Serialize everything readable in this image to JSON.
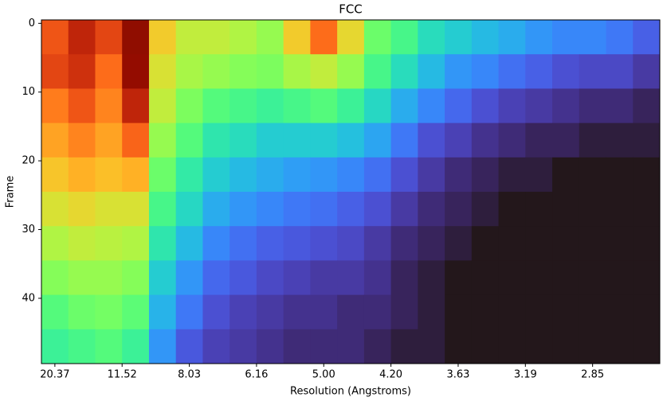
{
  "chart_data": {
    "type": "heatmap",
    "title": "FCC",
    "xlabel": "Resolution (Angstroms)",
    "ylabel": "Frame",
    "colormap": "turbo",
    "y_inverted": true,
    "xlim": [
      0,
      92
    ],
    "ylim": [
      -0.5,
      49.5
    ],
    "xticks": [
      {
        "value": 2,
        "label": "20.37"
      },
      {
        "value": 12,
        "label": "11.52"
      },
      {
        "value": 22,
        "label": "8.03"
      },
      {
        "value": 32,
        "label": "6.16"
      },
      {
        "value": 42,
        "label": "5.00"
      },
      {
        "value": 52,
        "label": "4.20"
      },
      {
        "value": 62,
        "label": "3.63"
      },
      {
        "value": 72,
        "label": "3.19"
      },
      {
        "value": 82,
        "label": "2.85"
      }
    ],
    "yticks": [
      0,
      10,
      20,
      30,
      40
    ],
    "z": [
      [
        0.78,
        0.85,
        0.8,
        0.95,
        0.62,
        0.55,
        0.55,
        0.53,
        0.5,
        0.62,
        0.75,
        0.6,
        0.45,
        0.4,
        0.33,
        0.3,
        0.27,
        0.25,
        0.22,
        0.2,
        0.2,
        0.18,
        0.15
      ],
      [
        0.8,
        0.83,
        0.75,
        0.92,
        0.58,
        0.52,
        0.5,
        0.48,
        0.47,
        0.52,
        0.55,
        0.5,
        0.4,
        0.33,
        0.27,
        0.22,
        0.2,
        0.17,
        0.15,
        0.13,
        0.12,
        0.12,
        0.1
      ],
      [
        0.73,
        0.78,
        0.72,
        0.85,
        0.55,
        0.47,
        0.42,
        0.4,
        0.38,
        0.4,
        0.42,
        0.38,
        0.32,
        0.25,
        0.2,
        0.16,
        0.13,
        0.11,
        0.1,
        0.09,
        0.08,
        0.08,
        0.07
      ],
      [
        0.68,
        0.72,
        0.68,
        0.76,
        0.5,
        0.42,
        0.35,
        0.33,
        0.3,
        0.3,
        0.3,
        0.28,
        0.24,
        0.18,
        0.13,
        0.11,
        0.09,
        0.08,
        0.07,
        0.07,
        0.06,
        0.06,
        0.06
      ],
      [
        0.63,
        0.66,
        0.64,
        0.66,
        0.45,
        0.36,
        0.3,
        0.27,
        0.25,
        0.23,
        0.22,
        0.2,
        0.17,
        0.13,
        0.1,
        0.08,
        0.07,
        0.06,
        0.06,
        0.05,
        0.05,
        0.05,
        0.05
      ],
      [
        0.58,
        0.6,
        0.58,
        0.58,
        0.4,
        0.32,
        0.25,
        0.22,
        0.2,
        0.18,
        0.17,
        0.15,
        0.13,
        0.1,
        0.08,
        0.07,
        0.06,
        0.05,
        0.05,
        0.05,
        0.05,
        0.05,
        0.05
      ],
      [
        0.53,
        0.55,
        0.54,
        0.53,
        0.35,
        0.27,
        0.2,
        0.17,
        0.15,
        0.14,
        0.13,
        0.12,
        0.1,
        0.08,
        0.07,
        0.06,
        0.05,
        0.05,
        0.05,
        0.05,
        0.05,
        0.05,
        0.05
      ],
      [
        0.48,
        0.5,
        0.5,
        0.48,
        0.3,
        0.22,
        0.16,
        0.14,
        0.12,
        0.11,
        0.1,
        0.1,
        0.09,
        0.07,
        0.06,
        0.05,
        0.05,
        0.05,
        0.05,
        0.05,
        0.05,
        0.05,
        0.05
      ],
      [
        0.42,
        0.45,
        0.46,
        0.43,
        0.26,
        0.18,
        0.13,
        0.11,
        0.1,
        0.09,
        0.09,
        0.08,
        0.08,
        0.07,
        0.06,
        0.05,
        0.05,
        0.05,
        0.05,
        0.05,
        0.05,
        0.05,
        0.05
      ],
      [
        0.38,
        0.4,
        0.42,
        0.38,
        0.22,
        0.14,
        0.11,
        0.1,
        0.09,
        0.08,
        0.08,
        0.08,
        0.07,
        0.06,
        0.06,
        0.05,
        0.05,
        0.05,
        0.05,
        0.05,
        0.05,
        0.05,
        0.05
      ]
    ]
  }
}
